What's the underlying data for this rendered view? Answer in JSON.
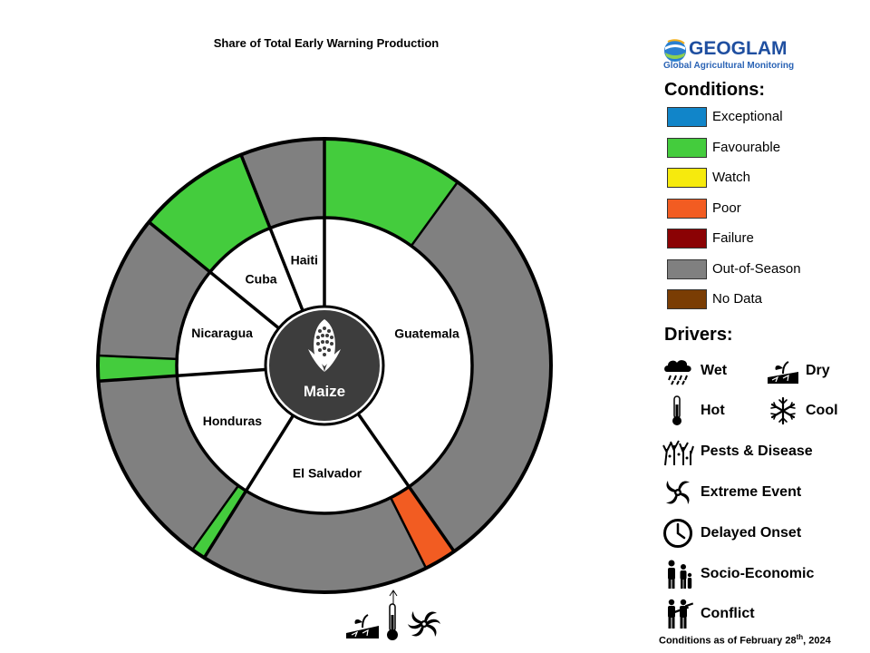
{
  "chart_data": {
    "type": "pie",
    "subtype": "nested-donut",
    "title": "Share of Total Early Warning Production",
    "center_label": "Maize",
    "center_icon": "maize-cob-icon",
    "inner_ring": [
      {
        "name": "Guatemala",
        "share": 40.3
      },
      {
        "name": "El Salvador",
        "share": 18.6
      },
      {
        "name": "Honduras",
        "share": 15.0
      },
      {
        "name": "Nicaragua",
        "share": 12.0
      },
      {
        "name": "Cuba",
        "share": 8.1
      },
      {
        "name": "Haiti",
        "share": 6.0
      }
    ],
    "outer_ring": [
      {
        "country": "Guatemala",
        "condition": "Favourable",
        "share": 10.0
      },
      {
        "country": "Guatemala",
        "condition": "Out-of-Season",
        "share": 30.3
      },
      {
        "country": "El Salvador",
        "condition": "Poor",
        "share": 2.3
      },
      {
        "country": "El Salvador",
        "condition": "Out-of-Season",
        "share": 16.3
      },
      {
        "country": "Honduras",
        "condition": "Favourable",
        "share": 1.0
      },
      {
        "country": "Honduras",
        "condition": "Out-of-Season",
        "share": 14.0
      },
      {
        "country": "Nicaragua",
        "condition": "Favourable",
        "share": 1.8
      },
      {
        "country": "Nicaragua",
        "condition": "Out-of-Season",
        "share": 10.2
      },
      {
        "country": "Cuba",
        "condition": "Favourable",
        "share": 8.1
      },
      {
        "country": "Haiti",
        "condition": "Out-of-Season",
        "share": 6.0
      }
    ],
    "annotation": {
      "country": "El Salvador",
      "segment": "Poor",
      "drivers": [
        "dry-icon",
        "thermometer-icon",
        "extreme-event-icon"
      ]
    }
  },
  "logo": {
    "name": "GEOGLAM",
    "subtitle": "Global Agricultural Monitoring"
  },
  "conditions": {
    "heading": "Conditions:",
    "items": [
      {
        "label": "Exceptional",
        "color": "#1185c9"
      },
      {
        "label": "Favourable",
        "color": "#44cc3d"
      },
      {
        "label": "Watch",
        "color": "#f6ea0d"
      },
      {
        "label": "Poor",
        "color": "#f25c22"
      },
      {
        "label": "Failure",
        "color": "#8b0204"
      },
      {
        "label": "Out-of-Season",
        "color": "#808080"
      },
      {
        "label": "No Data",
        "color": "#7a3d04"
      }
    ]
  },
  "drivers": {
    "heading": "Drivers:",
    "items": [
      {
        "label": "Wet",
        "icon": "rain-cloud-icon"
      },
      {
        "label": "Dry",
        "icon": "dry-icon"
      },
      {
        "label": "Hot",
        "icon": "thermometer-icon"
      },
      {
        "label": "Cool",
        "icon": "snowflake-icon"
      },
      {
        "label": "Pests & Disease",
        "icon": "pests-disease-icon"
      },
      {
        "label": "Extreme Event",
        "icon": "extreme-event-icon"
      },
      {
        "label": "Delayed Onset",
        "icon": "clock-icon"
      },
      {
        "label": "Socio-Economic",
        "icon": "socio-economic-icon"
      },
      {
        "label": "Conflict",
        "icon": "conflict-icon"
      }
    ]
  },
  "footnote": {
    "prefix": "Conditions as of February 28",
    "suffix": "th",
    "year": ", 2024"
  }
}
